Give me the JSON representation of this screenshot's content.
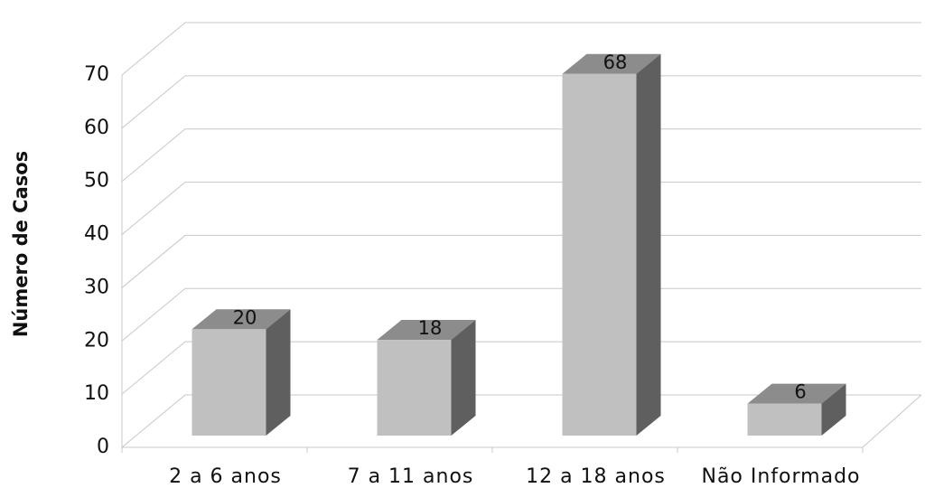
{
  "chart_data": {
    "type": "bar3d",
    "y_label": "Número de Casos",
    "categories": [
      "2 a 6 anos",
      "7 a 11 anos",
      "12 a 18 anos",
      "Não Informado"
    ],
    "values": [
      20,
      18,
      68,
      6
    ],
    "ylim": [
      0,
      70
    ],
    "yticks": [
      0,
      10,
      20,
      30,
      40,
      50,
      60,
      70
    ],
    "grid": true,
    "color": "#c0c0c0",
    "top_color": "#8c8c8c",
    "side_color": "#5f5f5f"
  }
}
